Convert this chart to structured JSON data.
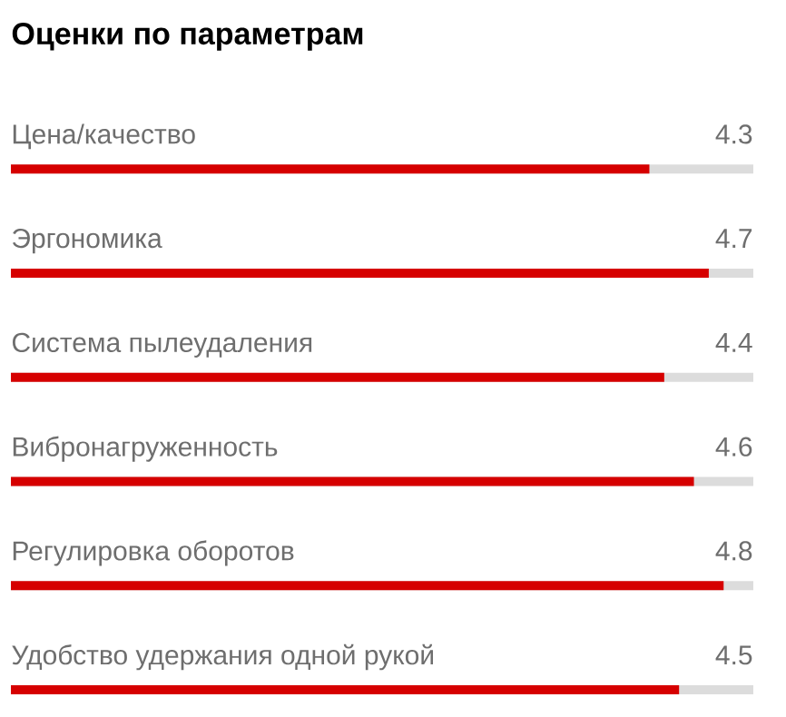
{
  "chart_data": {
    "type": "bar",
    "orientation": "horizontal",
    "title": "Оценки по параметрам",
    "categories": [
      "Цена/качество",
      "Эргономика",
      "Система пылеудаления",
      "Вибронагруженность",
      "Регулировка оборотов",
      "Удобство удержания одной рукой"
    ],
    "values": [
      4.3,
      4.7,
      4.4,
      4.6,
      4.8,
      4.5
    ],
    "color": "#d60000",
    "xlim": [
      0,
      5
    ],
    "data_labels": true
  }
}
